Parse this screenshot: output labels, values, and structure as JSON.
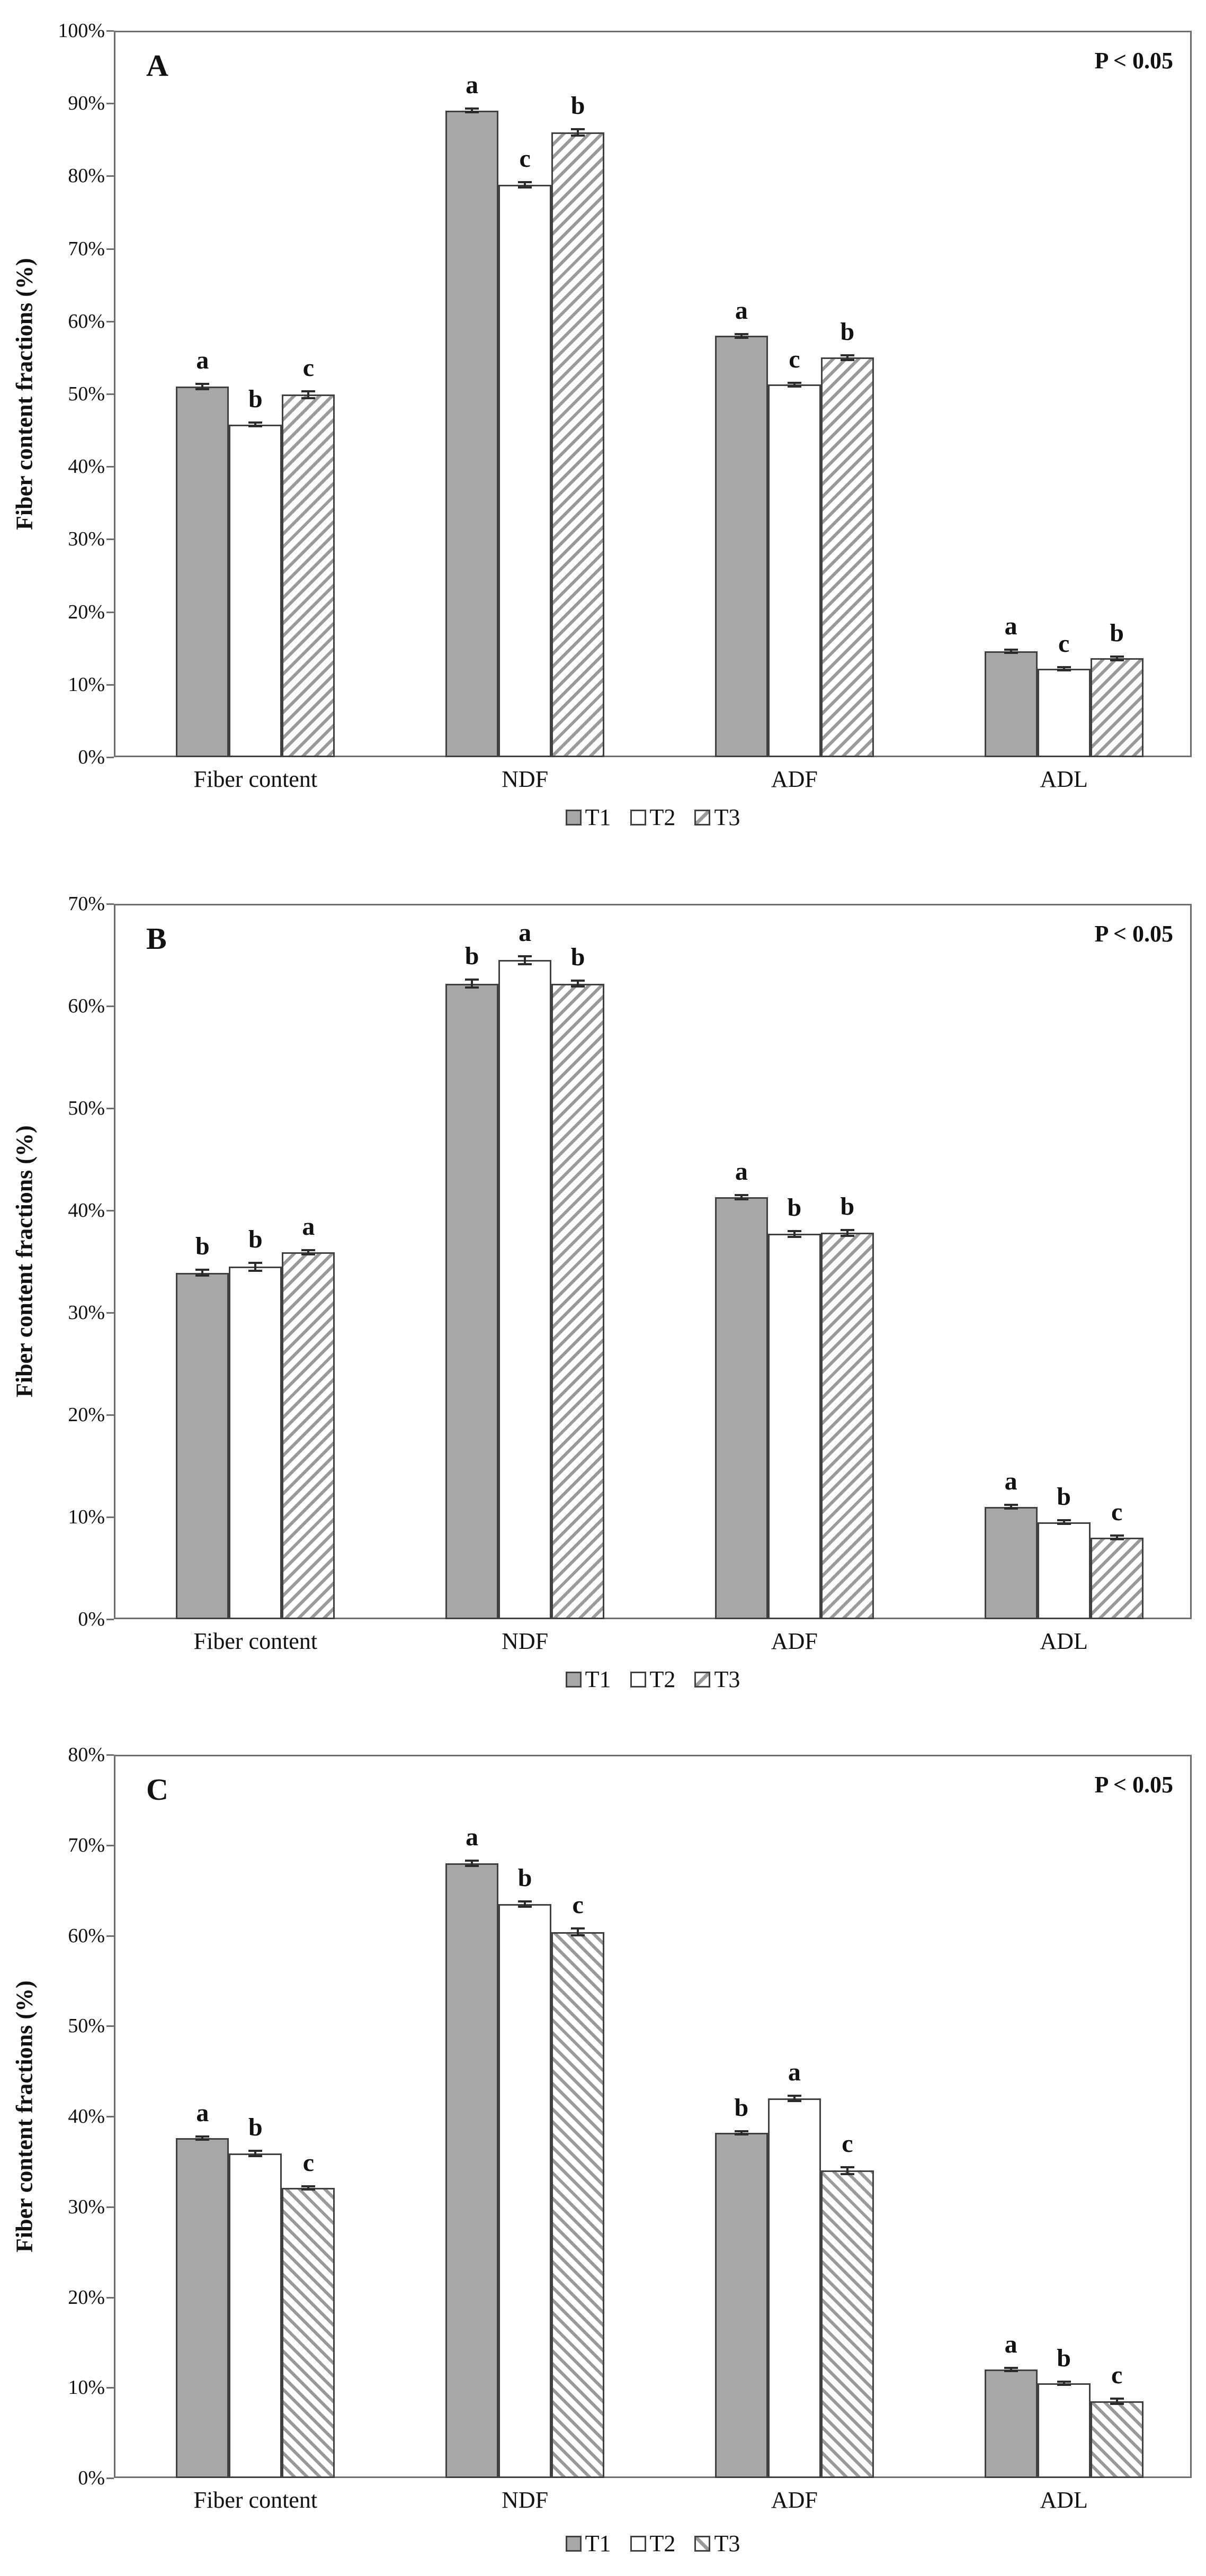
{
  "styles": {
    "t1_fill": "#a9a7a6",
    "bar_border": "#404040",
    "hatch_line": "#9a9a9a",
    "frame": "#6e6e6e",
    "text": "#111111"
  },
  "chart_data": [
    {
      "type": "bar",
      "title": "A",
      "p_annotation": "P < 0.05",
      "ylabel": "Fiber content fractions (%)",
      "categories": [
        "Fiber content",
        "NDF",
        "ADF",
        "ADL"
      ],
      "series": [
        {
          "name": "T1",
          "values": [
            51.0,
            89.0,
            58.0,
            14.6
          ],
          "errors": [
            0.5,
            0.4,
            0.4,
            0.3
          ]
        },
        {
          "name": "T2",
          "values": [
            45.8,
            78.8,
            51.3,
            12.2
          ],
          "errors": [
            0.4,
            0.5,
            0.4,
            0.3
          ]
        },
        {
          "name": "T3",
          "values": [
            49.9,
            86.0,
            55.0,
            13.6
          ],
          "errors": [
            0.6,
            0.6,
            0.5,
            0.4
          ]
        }
      ],
      "sig_letters": [
        [
          "a",
          "b",
          "c"
        ],
        [
          "a",
          "c",
          "b"
        ],
        [
          "a",
          "c",
          "b"
        ],
        [
          "a",
          "c",
          "b"
        ]
      ],
      "ylim": [
        0,
        100
      ],
      "ytick_step": 10,
      "ytick_suffix": "%",
      "grid": false,
      "legend_position": "bottom",
      "legend": [
        "T1",
        "T2",
        "T3"
      ],
      "hatch_direction": "up"
    },
    {
      "type": "bar",
      "title": "B",
      "p_annotation": "P < 0.05",
      "ylabel": "Fiber content fractions (%)",
      "categories": [
        "Fiber content",
        "NDF",
        "ADF",
        "ADL"
      ],
      "series": [
        {
          "name": "T1",
          "values": [
            33.9,
            62.2,
            41.3,
            11.0
          ],
          "errors": [
            0.4,
            0.5,
            0.3,
            0.3
          ]
        },
        {
          "name": "T2",
          "values": [
            34.5,
            64.5,
            37.7,
            9.5
          ],
          "errors": [
            0.5,
            0.5,
            0.4,
            0.3
          ]
        },
        {
          "name": "T3",
          "values": [
            35.9,
            62.2,
            37.8,
            8.0
          ],
          "errors": [
            0.3,
            0.4,
            0.4,
            0.3
          ]
        }
      ],
      "sig_letters": [
        [
          "b",
          "b",
          "a"
        ],
        [
          "b",
          "a",
          "b"
        ],
        [
          "a",
          "b",
          "b"
        ],
        [
          "a",
          "b",
          "c"
        ]
      ],
      "ylim": [
        0,
        70
      ],
      "ytick_step": 10,
      "ytick_suffix": "%",
      "grid": false,
      "legend_position": "bottom",
      "legend": [
        "T1",
        "T2",
        "T3"
      ],
      "hatch_direction": "up"
    },
    {
      "type": "bar",
      "title": "C",
      "p_annotation": "P < 0.05",
      "ylabel": "Fiber content fractions (%)",
      "categories": [
        "Fiber content",
        "NDF",
        "ADF",
        "ADL"
      ],
      "series": [
        {
          "name": "T1",
          "values": [
            37.6,
            68.0,
            38.2,
            12.0
          ],
          "errors": [
            0.3,
            0.4,
            0.3,
            0.3
          ]
        },
        {
          "name": "T2",
          "values": [
            35.9,
            63.5,
            42.0,
            10.5
          ],
          "errors": [
            0.4,
            0.4,
            0.4,
            0.3
          ]
        },
        {
          "name": "T3",
          "values": [
            32.1,
            60.4,
            34.0,
            8.5
          ],
          "errors": [
            0.3,
            0.5,
            0.5,
            0.4
          ]
        }
      ],
      "sig_letters": [
        [
          "a",
          "b",
          "c"
        ],
        [
          "a",
          "b",
          "c"
        ],
        [
          "b",
          "a",
          "c"
        ],
        [
          "a",
          "b",
          "c"
        ]
      ],
      "ylim": [
        0,
        80
      ],
      "ytick_step": 10,
      "ytick_suffix": "%",
      "grid": false,
      "legend_position": "bottom",
      "legend": [
        "T1",
        "T2",
        "T3"
      ],
      "hatch_direction": "down"
    }
  ]
}
